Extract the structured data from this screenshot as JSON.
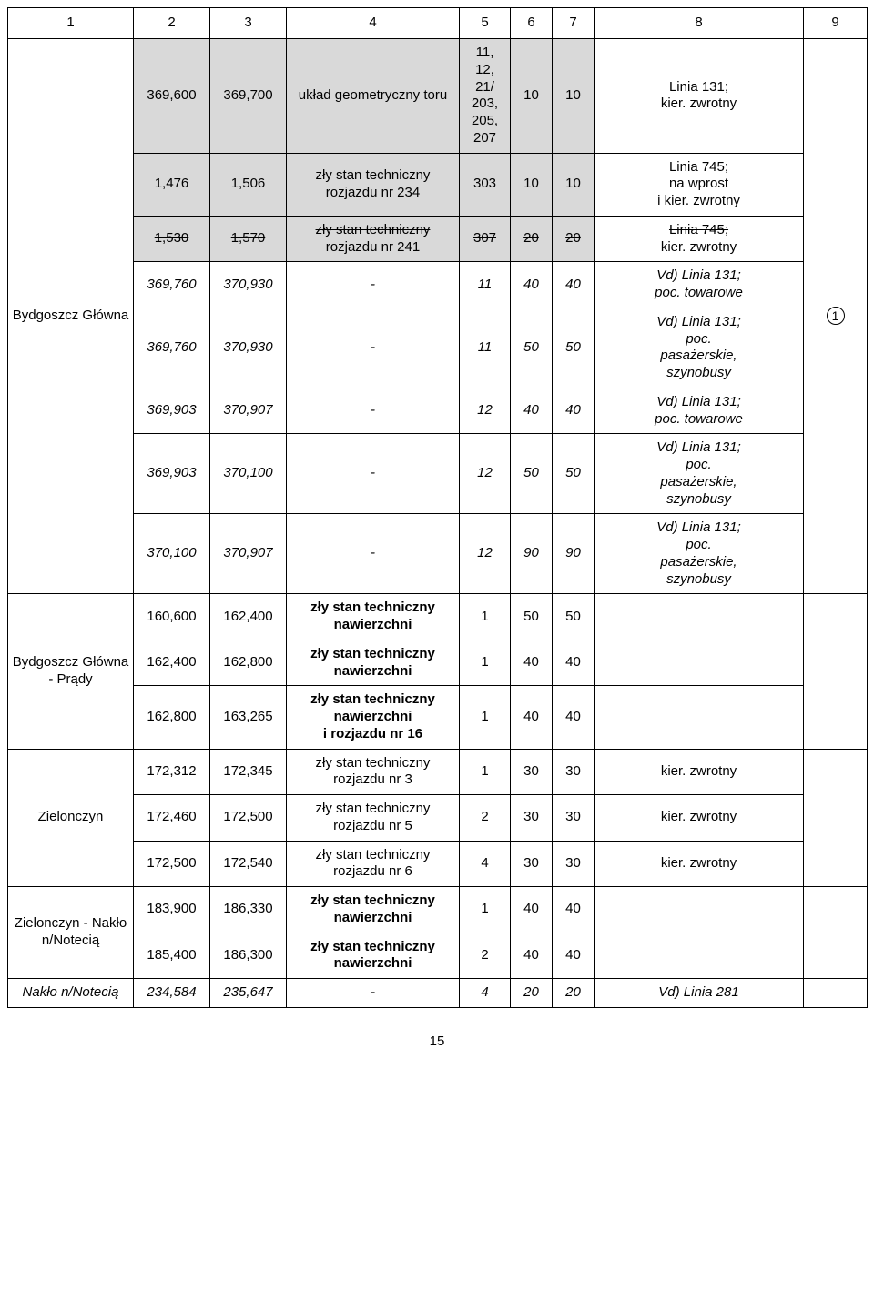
{
  "header": {
    "cols": [
      "1",
      "2",
      "3",
      "4",
      "5",
      "6",
      "7",
      "8",
      "9"
    ]
  },
  "footer_page": "15",
  "circled_1": "1",
  "stations": {
    "bydgoszcz_glowna": "Bydgoszcz Główna",
    "bydgoszcz_glowna_prady": "Bydgoszcz Główna - Prądy",
    "zielonczyn": "Zielonczyn",
    "zielonczyn_naklo": "Zielonczyn - Nakło n/Notecią",
    "naklo": "Nakło n/Notecią"
  },
  "rows": {
    "r1": {
      "a": "369,600",
      "b": "369,700",
      "reason": "układ geometryczny toru",
      "col5": "11,\n12,\n21/\n203,\n205,\n207",
      "v1": "10",
      "v2": "10",
      "note": "Linia 131;\nkier. zwrotny"
    },
    "r2": {
      "a": "1,476",
      "b": "1,506",
      "reason": "zły stan techniczny rozjazdu nr 234",
      "col5": "303",
      "v1": "10",
      "v2": "10",
      "note": "Linia 745;\nna wprost\ni kier. zwrotny"
    },
    "r3": {
      "a": "1,530",
      "b": "1,570",
      "reason": "zły stan techniczny rozjazdu nr 241",
      "col5": "307",
      "v1": "20",
      "v2": "20",
      "note": "Linia 745;\nkier. zwrotny"
    },
    "r4": {
      "a": "369,760",
      "b": "370,930",
      "reason": "-",
      "col5": "11",
      "v1": "40",
      "v2": "40",
      "note": "Vd) Linia 131;\npoc. towarowe"
    },
    "r5": {
      "a": "369,760",
      "b": "370,930",
      "reason": "-",
      "col5": "11",
      "v1": "50",
      "v2": "50",
      "note": "Vd) Linia 131;\npoc.\npasażerskie,\nszynobusy"
    },
    "r6": {
      "a": "369,903",
      "b": "370,907",
      "reason": "-",
      "col5": "12",
      "v1": "40",
      "v2": "40",
      "note": "Vd) Linia 131;\npoc. towarowe"
    },
    "r7": {
      "a": "369,903",
      "b": "370,100",
      "reason": "-",
      "col5": "12",
      "v1": "50",
      "v2": "50",
      "note": "Vd) Linia 131;\npoc.\npasażerskie,\nszynobusy"
    },
    "r8": {
      "a": "370,100",
      "b": "370,907",
      "reason": "-",
      "col5": "12",
      "v1": "90",
      "v2": "90",
      "note": "Vd) Linia 131;\npoc.\npasażerskie,\nszynobusy"
    },
    "r9": {
      "a": "160,600",
      "b": "162,400",
      "reason": "zły stan techniczny nawierzchni",
      "col5": "1",
      "v1": "50",
      "v2": "50",
      "note": ""
    },
    "r10": {
      "a": "162,400",
      "b": "162,800",
      "reason": "zły stan techniczny nawierzchni",
      "col5": "1",
      "v1": "40",
      "v2": "40",
      "note": ""
    },
    "r11": {
      "a": "162,800",
      "b": "163,265",
      "reason": "zły stan techniczny nawierzchni\ni rozjazdu nr 16",
      "col5": "1",
      "v1": "40",
      "v2": "40",
      "note": ""
    },
    "r12": {
      "a": "172,312",
      "b": "172,345",
      "reason": "zły stan techniczny rozjazdu nr 3",
      "col5": "1",
      "v1": "30",
      "v2": "30",
      "note": "kier. zwrotny"
    },
    "r13": {
      "a": "172,460",
      "b": "172,500",
      "reason": "zły stan techniczny rozjazdu nr 5",
      "col5": "2",
      "v1": "30",
      "v2": "30",
      "note": "kier. zwrotny"
    },
    "r14": {
      "a": "172,500",
      "b": "172,540",
      "reason": "zły stan techniczny rozjazdu nr 6",
      "col5": "4",
      "v1": "30",
      "v2": "30",
      "note": "kier. zwrotny"
    },
    "r15": {
      "a": "183,900",
      "b": "186,330",
      "reason": "zły stan techniczny nawierzchni",
      "col5": "1",
      "v1": "40",
      "v2": "40",
      "note": ""
    },
    "r16": {
      "a": "185,400",
      "b": "186,300",
      "reason": "zły stan techniczny nawierzchni",
      "col5": "2",
      "v1": "40",
      "v2": "40",
      "note": ""
    },
    "r17": {
      "a": "234,584",
      "b": "235,647",
      "reason": "-",
      "col5": "4",
      "v1": "20",
      "v2": "20",
      "note": "Vd) Linia 281"
    }
  }
}
